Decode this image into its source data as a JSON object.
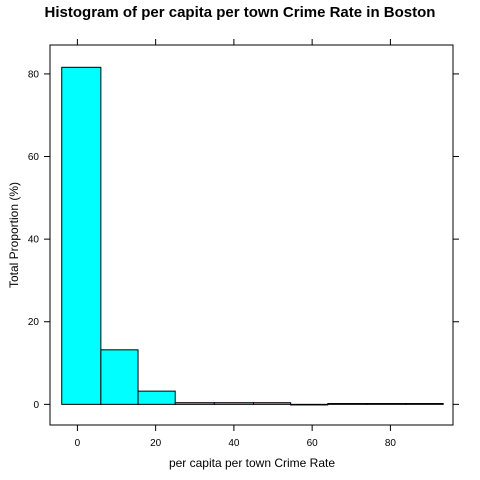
{
  "chart_data": {
    "type": "bar",
    "title": "Histogram of per capita per town Crime Rate in Boston",
    "xlabel": "per capita per town Crime Rate",
    "ylabel": "Total Proportion (%)",
    "xlim": [
      -7,
      96
    ],
    "ylim": [
      -5,
      87
    ],
    "xticks": [
      0,
      20,
      40,
      60,
      80
    ],
    "yticks": [
      0,
      20,
      40,
      60,
      80
    ],
    "bins": [
      {
        "from": -4,
        "to": 6,
        "value": 81.6
      },
      {
        "from": 6,
        "to": 15.5,
        "value": 13.2
      },
      {
        "from": 15.5,
        "to": 25,
        "value": 3.2
      },
      {
        "from": 25,
        "to": 35,
        "value": 0.4
      },
      {
        "from": 35,
        "to": 45,
        "value": 0.4
      },
      {
        "from": 45,
        "to": 54.5,
        "value": 0.4
      },
      {
        "from": 54.5,
        "to": 64,
        "value": 0
      },
      {
        "from": 64,
        "to": 74,
        "value": 0.2
      },
      {
        "from": 74,
        "to": 84,
        "value": 0.2
      },
      {
        "from": 84,
        "to": 93.5,
        "value": 0.2
      }
    ],
    "bar_color": "#00FFFF",
    "grid": false,
    "legend": "none"
  }
}
